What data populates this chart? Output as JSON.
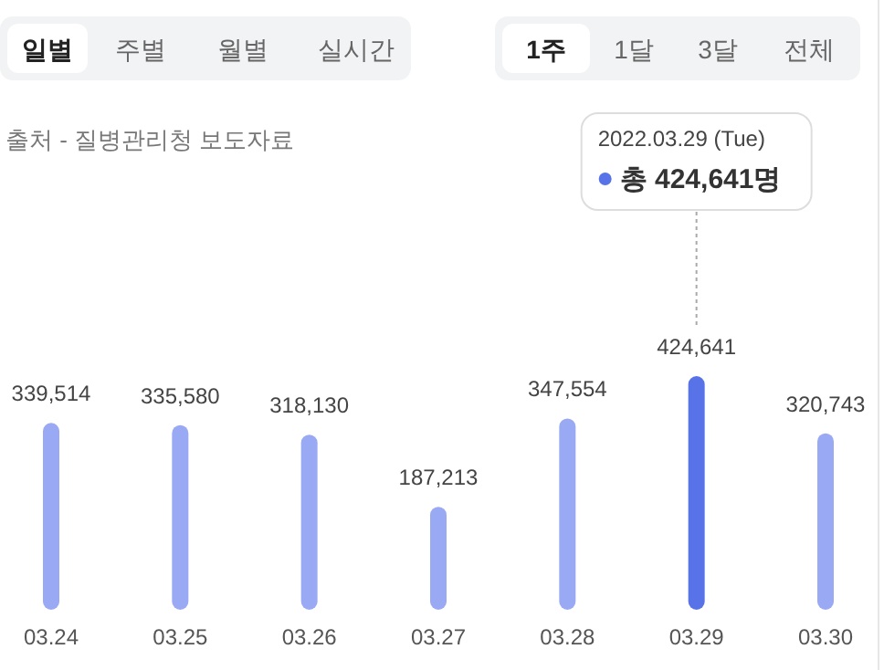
{
  "chart_data": {
    "type": "bar",
    "categories": [
      "03.24",
      "03.25",
      "03.26",
      "03.27",
      "03.28",
      "03.29",
      "03.30"
    ],
    "values": [
      339514,
      335580,
      318130,
      187213,
      347554,
      424641,
      320743
    ],
    "colors": [
      "#9aa9f3",
      "#9aa9f3",
      "#9aa9f3",
      "#9aa9f3",
      "#9aa9f3",
      "#5873e8",
      "#9aa9f3"
    ],
    "value_labels": [
      "339,514",
      "335,580",
      "318,130",
      "187,213",
      "347,554",
      "424,641",
      "320,743"
    ],
    "annotations": [
      "일별",
      "주별",
      "월별",
      "실시간",
      "1주",
      "1달",
      "3달",
      "전체",
      "출처 - 질병관리청 보도자료",
      "2022.03.29 (Tue)",
      "총 424,641명"
    ]
  }
}
